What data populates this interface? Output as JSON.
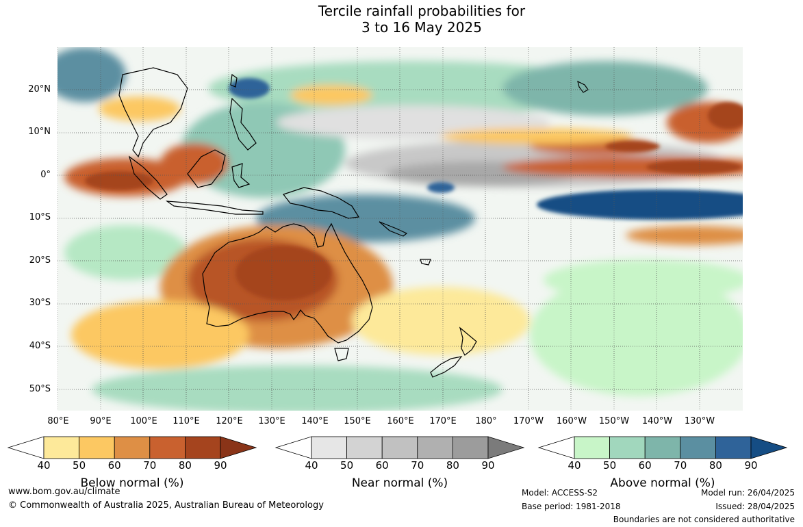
{
  "title": {
    "line1": "Tercile rainfall probabilities for",
    "line2": "3 to 16 May 2025"
  },
  "map": {
    "lat_labels": [
      "20°N",
      "10°N",
      "0°",
      "10°S",
      "20°S",
      "30°S",
      "40°S",
      "50°S"
    ],
    "lon_labels": [
      "80°E",
      "90°E",
      "100°E",
      "110°E",
      "120°E",
      "130°E",
      "140°E",
      "150°E",
      "160°E",
      "170°E",
      "180°",
      "170°W",
      "160°W",
      "150°W",
      "140°W",
      "130°W"
    ],
    "colors": {
      "land_outline": "#000000",
      "gridline": "#555555"
    }
  },
  "legends": [
    {
      "label": "Below normal (%)",
      "ticks": [
        "40",
        "50",
        "60",
        "70",
        "80",
        "90"
      ],
      "colors": [
        "#ffffff",
        "#fde99a",
        "#fcc862",
        "#de8f45",
        "#c9612f",
        "#a5441e",
        "#8a3418"
      ]
    },
    {
      "label": "Near normal (%)",
      "ticks": [
        "40",
        "50",
        "60",
        "70",
        "80",
        "90"
      ],
      "colors": [
        "#ffffff",
        "#e6e6e6",
        "#d3d3d3",
        "#c1c1c1",
        "#b0b0b0",
        "#9c9c9c",
        "#7b7b7b"
      ]
    },
    {
      "label": "Above normal (%)",
      "ticks": [
        "40",
        "50",
        "60",
        "70",
        "80",
        "90"
      ],
      "colors": [
        "#ffffff",
        "#c8f5c8",
        "#a1d7bd",
        "#7eb5aa",
        "#5b8fa1",
        "#2f6399",
        "#154d84"
      ]
    }
  ],
  "footer": {
    "website": "www.bom.gov.au/climate",
    "copyright": "© Commonwealth of Australia 2025, Australian Bureau of Meteorology",
    "model": "Model: ACCESS-S2",
    "base_period": "Base period: 1981-2018",
    "model_run": "Model run: 26/04/2025",
    "issued": "Issued: 28/04/2025",
    "disclaimer": "Boundaries are not considered authoritative"
  }
}
